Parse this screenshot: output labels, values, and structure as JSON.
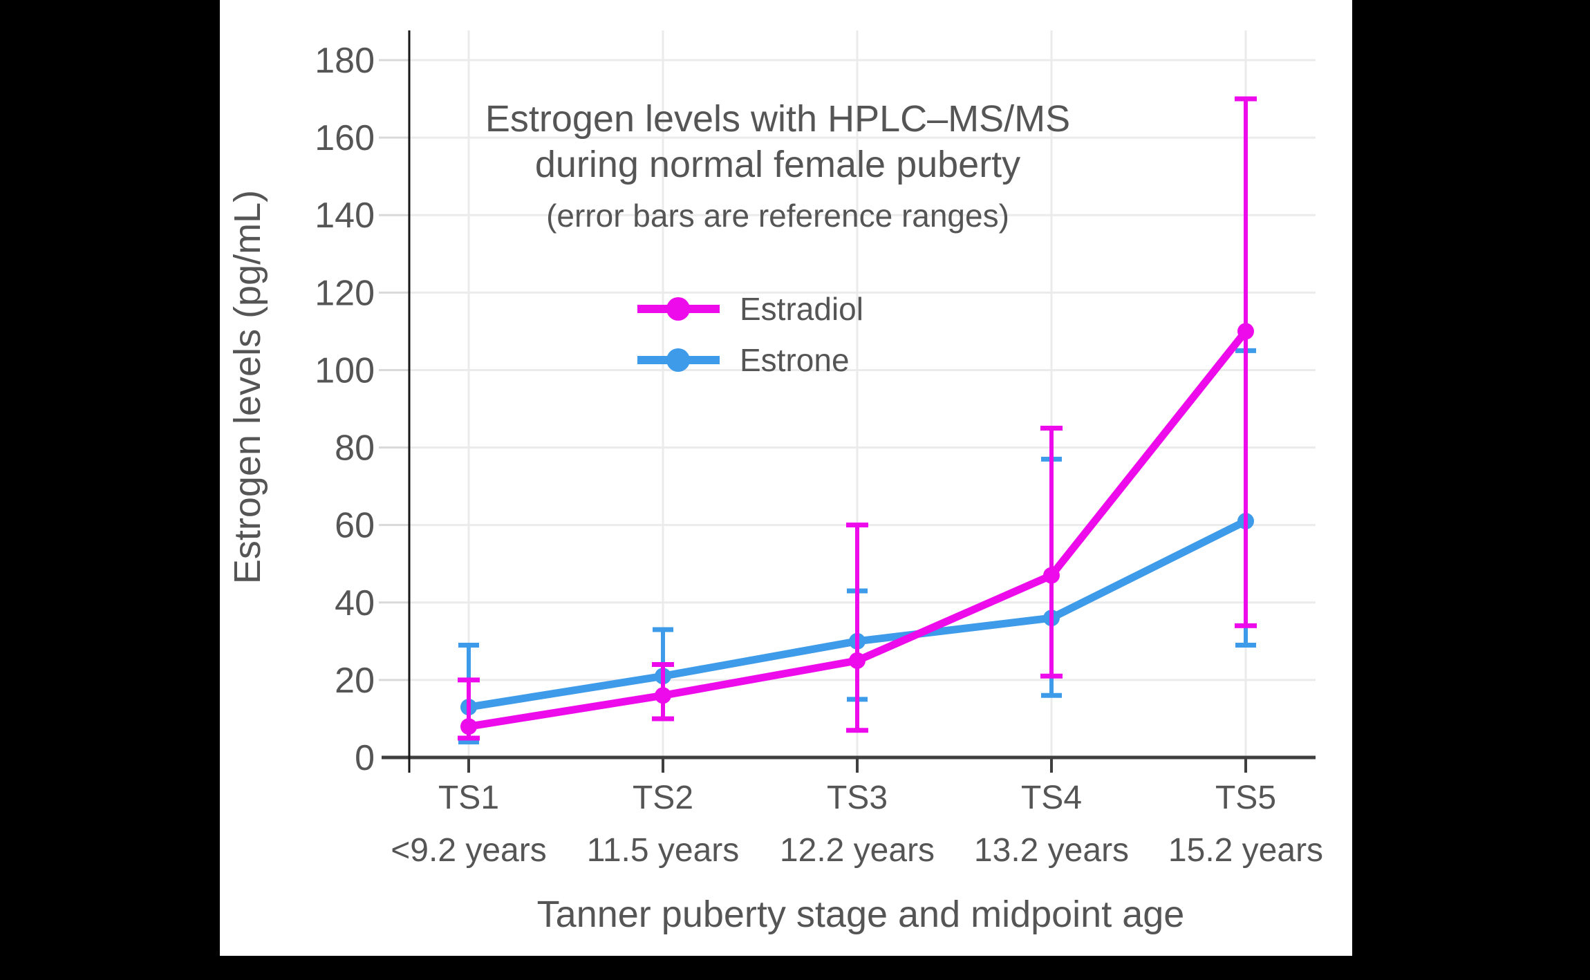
{
  "page": {
    "background_color": "#000000",
    "canvas_color": "#ffffff"
  },
  "chart_data": {
    "type": "line",
    "title_lines": [
      "Estrogen levels with HPLC–MS/MS",
      "during normal female puberty"
    ],
    "subtitle": "(error bars are reference ranges)",
    "xlabel": "Tanner puberty stage and midpoint age",
    "ylabel": "Estrogen levels (pg/mL)",
    "categories": [
      "TS1",
      "TS2",
      "TS3",
      "TS4",
      "TS5"
    ],
    "category_ages": [
      "<9.2 years",
      "11.5 years",
      "12.2 years",
      "13.2 years",
      "15.2 years"
    ],
    "y_axis": {
      "min": 0,
      "max": 180,
      "tick_step": 20,
      "ticks": [
        0,
        20,
        40,
        60,
        80,
        100,
        120,
        140,
        160,
        180
      ]
    },
    "grid": true,
    "error_bar_meaning": "reference ranges",
    "series": [
      {
        "name": "Estrone",
        "color": "#3D9BE9",
        "values": [
          13,
          21,
          30,
          36,
          61
        ],
        "range_low": [
          4,
          10,
          15,
          16,
          29
        ],
        "range_high": [
          29,
          33,
          43,
          77,
          105
        ]
      },
      {
        "name": "Estradiol",
        "color": "#EE0BEB",
        "values": [
          8,
          16,
          25,
          47,
          110
        ],
        "range_low": [
          5,
          10,
          7,
          21,
          34
        ],
        "range_high": [
          20,
          24,
          60,
          85,
          170
        ]
      }
    ],
    "legend": {
      "position": "upper-center-inside",
      "order": [
        "Estradiol",
        "Estrone"
      ]
    },
    "style": {
      "text_color": "#555555",
      "axis_color": "#3F3F3F",
      "y_axis_line_color": "#161616",
      "gridline_color": "#EBEBEB",
      "tick_dash_color": "#D9D9D9"
    }
  }
}
